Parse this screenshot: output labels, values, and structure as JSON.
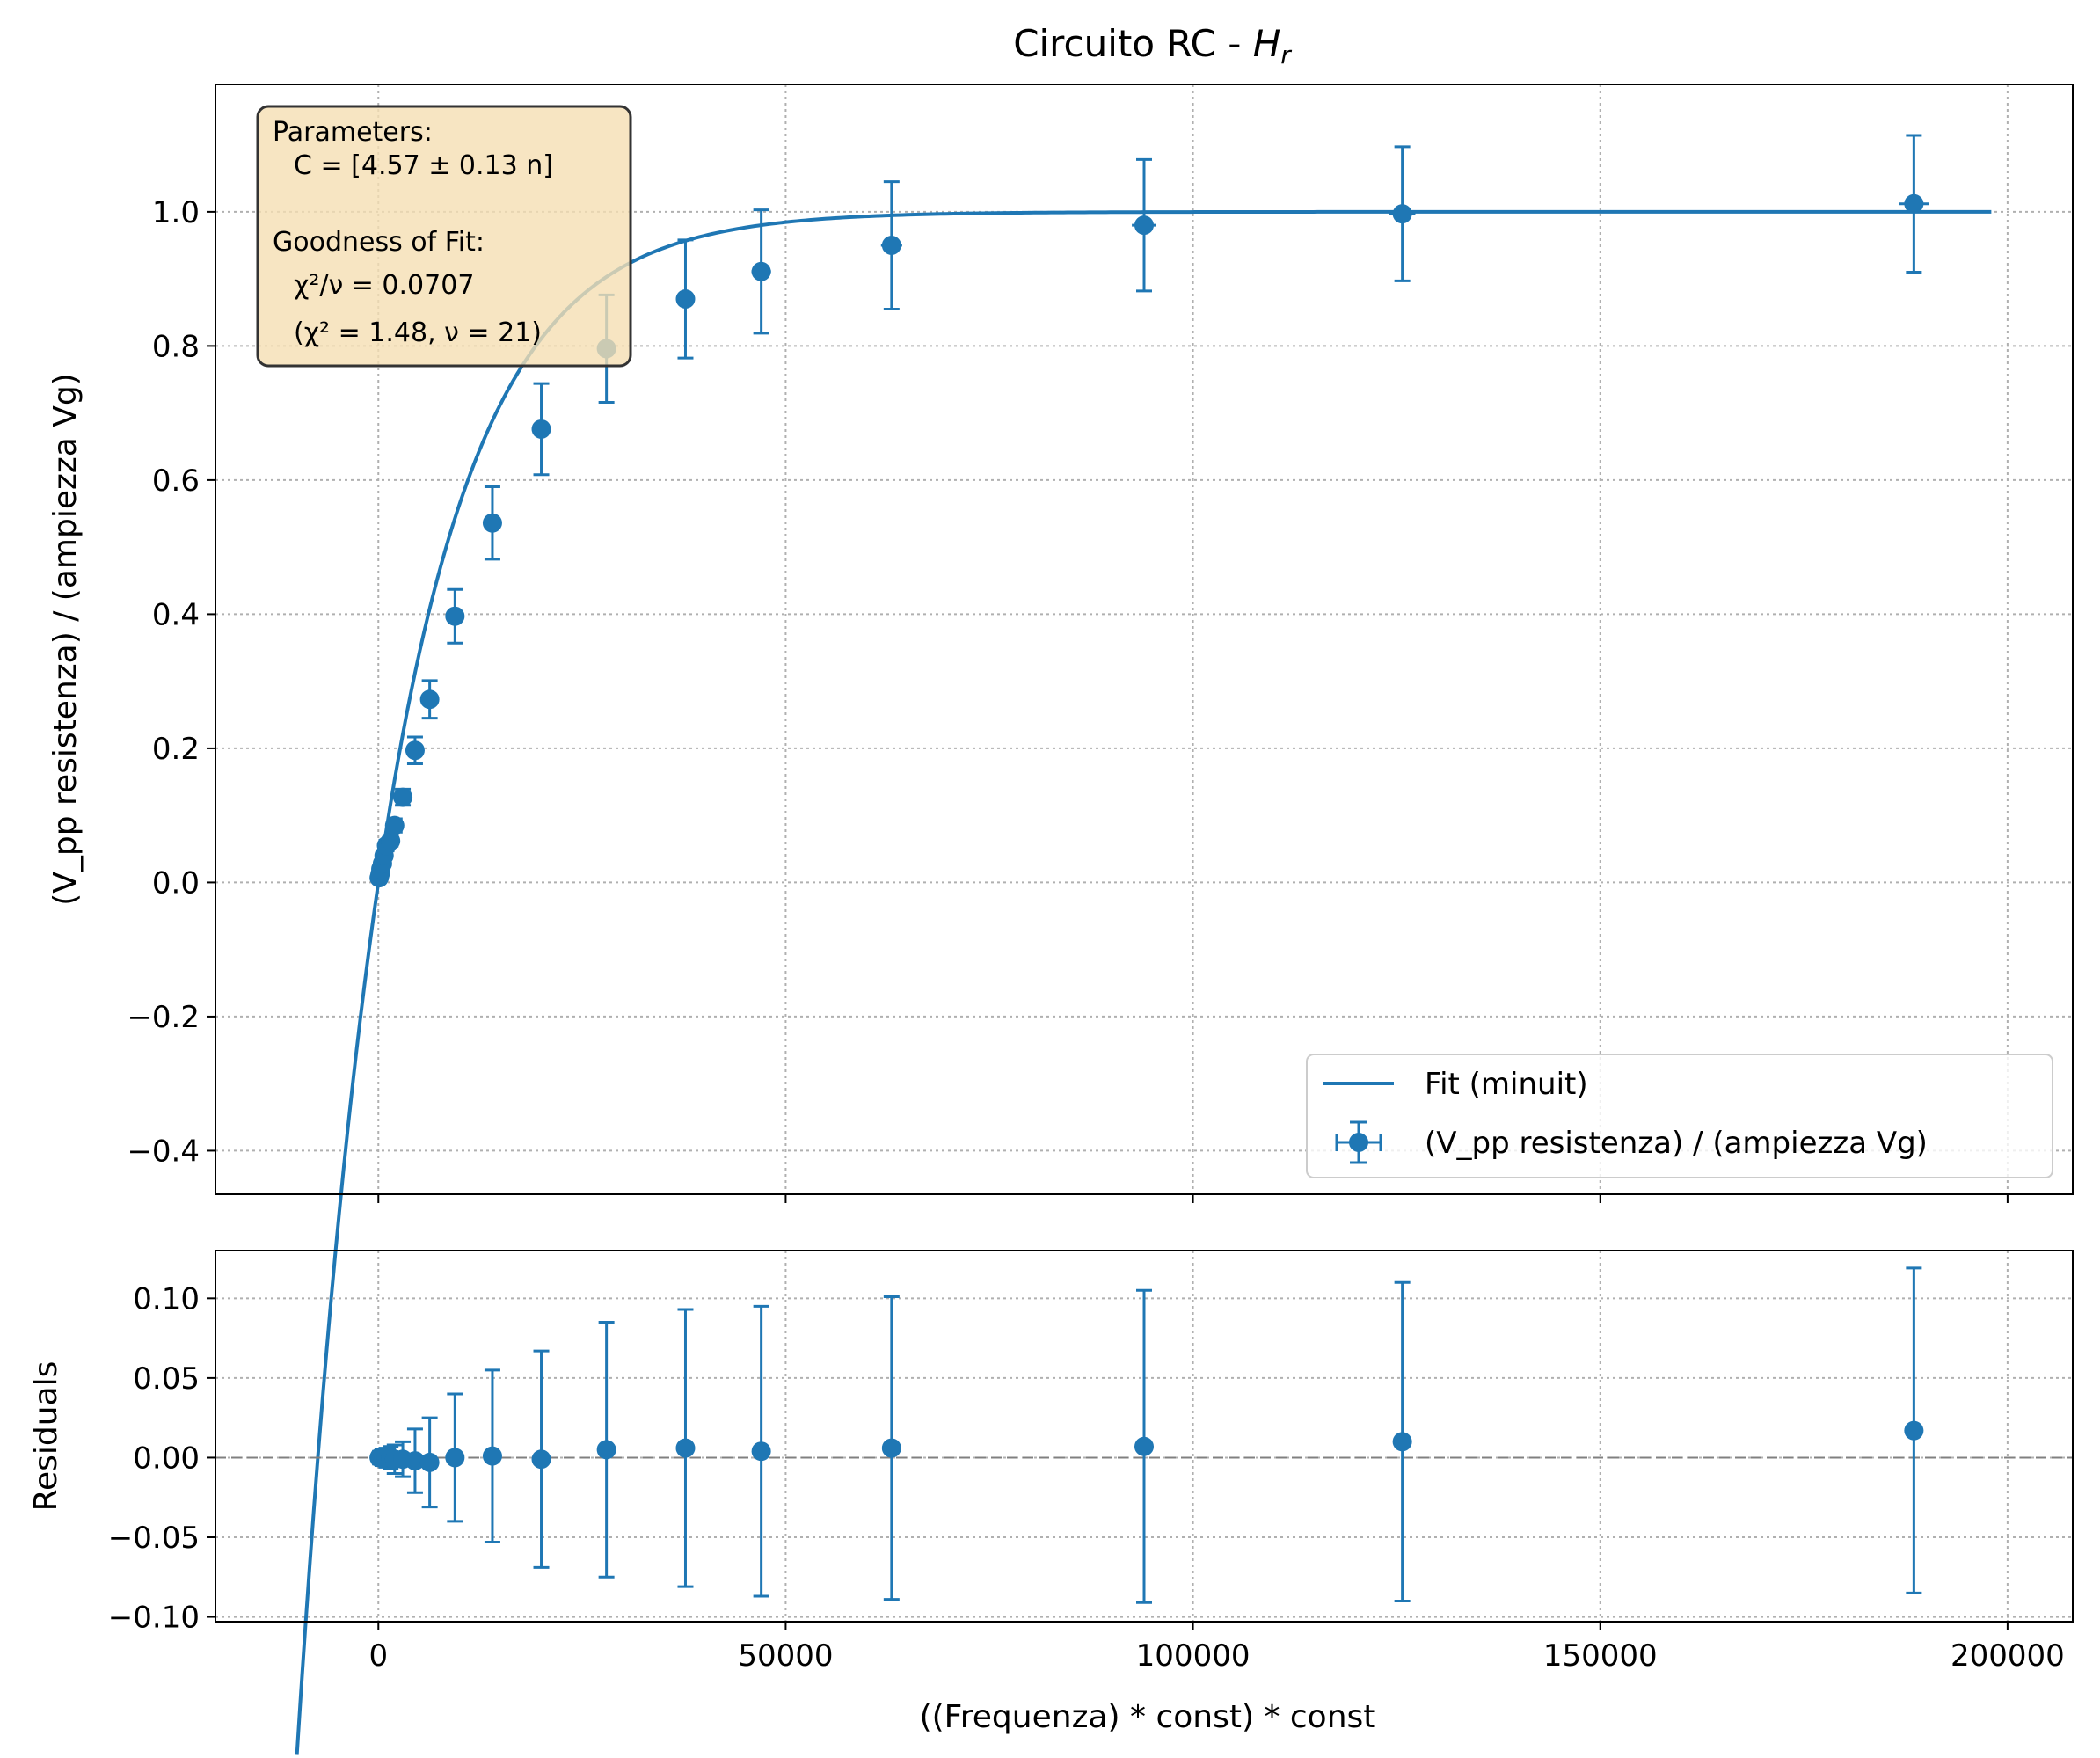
{
  "chart_data": [
    {
      "type": "scatter",
      "panel": "main",
      "title": "Circuito RC - ",
      "title_math": "H",
      "title_math_sub": "r",
      "xlabel": "",
      "ylabel": "(V_pp resistenza) / (ampiezza Vg)",
      "xlim": [
        -20000,
        208000
      ],
      "ylim": [
        -0.465,
        1.19
      ],
      "yticks": [
        "−0.4",
        "−0.2",
        "0.0",
        "0.2",
        "0.4",
        "0.6",
        "0.8",
        "1.0"
      ],
      "ytick_values": [
        -0.4,
        -0.2,
        0.0,
        0.2,
        0.4,
        0.6,
        0.8,
        1.0
      ],
      "grid": true,
      "legend_position": "lower-right",
      "series": [
        {
          "name": "Fit (minuit)",
          "kind": "line",
          "color": "#1f77b4",
          "tau": 12000
        },
        {
          "name": "(V_pp resistenza) / (ampiezza Vg)",
          "kind": "errorbar",
          "color": "#1f77b4",
          "x": [
            100,
            200,
            300,
            500,
            700,
            1000,
            1500,
            2000,
            3000,
            4500,
            6300,
            9400,
            14000,
            20000,
            28000,
            37700,
            47000,
            63000,
            94000,
            125700,
            188500
          ],
          "y": [
            0.007,
            0.012,
            0.02,
            0.028,
            0.04,
            0.055,
            0.062,
            0.085,
            0.127,
            0.197,
            0.273,
            0.397,
            0.536,
            0.676,
            0.796,
            0.87,
            0.911,
            0.95,
            0.98,
            0.997,
            1.012
          ],
          "yerr": [
            0.005,
            0.005,
            0.005,
            0.006,
            0.006,
            0.008,
            0.008,
            0.01,
            0.012,
            0.02,
            0.028,
            0.04,
            0.054,
            0.068,
            0.08,
            0.088,
            0.092,
            0.095,
            0.098,
            0.1,
            0.102
          ],
          "xerr": [
            50,
            60,
            80,
            100,
            120,
            150,
            200,
            250,
            350,
            450,
            600,
            700,
            800,
            900,
            1000,
            1100,
            1200,
            1300,
            1500,
            1600,
            1800
          ]
        }
      ],
      "annotation": {
        "header_params": "Parameters:",
        "param_line": "C = [4.57 ± 0.13 n]",
        "header_gof": "Goodness of Fit:",
        "chi2_line": "χ²/ν = 0.0707",
        "chi2_detail": "(χ² = 1.48, ν = 21)"
      }
    },
    {
      "type": "scatter",
      "panel": "residuals",
      "xlabel": "((Frequenza) * const) * const",
      "ylabel": "Residuals",
      "xlim": [
        -20000,
        208000
      ],
      "ylim": [
        -0.103,
        0.13
      ],
      "xticks": [
        "0",
        "50000",
        "100000",
        "150000",
        "200000"
      ],
      "xtick_values": [
        0,
        50000,
        100000,
        150000,
        200000
      ],
      "yticks": [
        "−0.10",
        "−0.05",
        "0.00",
        "0.05",
        "0.10"
      ],
      "ytick_values": [
        -0.1,
        -0.05,
        0.0,
        0.05,
        0.1
      ],
      "grid": true,
      "zero_line": true,
      "series": [
        {
          "kind": "errorbar",
          "color": "#1f77b4",
          "x": [
            100,
            200,
            300,
            500,
            700,
            1000,
            1500,
            2000,
            3000,
            4500,
            6300,
            9400,
            14000,
            20000,
            28000,
            37700,
            47000,
            63000,
            94000,
            125700,
            188500
          ],
          "y": [
            0.0,
            0.0,
            0.0,
            0.0,
            0.0,
            0.0,
            0.0,
            -0.001,
            -0.001,
            -0.002,
            -0.003,
            0.0,
            0.001,
            -0.001,
            0.005,
            0.006,
            0.004,
            0.006,
            0.007,
            0.01,
            0.017
          ],
          "yerr": [
            0.003,
            0.004,
            0.004,
            0.005,
            0.005,
            0.006,
            0.007,
            0.009,
            0.011,
            0.02,
            0.028,
            0.04,
            0.054,
            0.068,
            0.08,
            0.087,
            0.091,
            0.095,
            0.098,
            0.1,
            0.102
          ]
        }
      ]
    }
  ]
}
